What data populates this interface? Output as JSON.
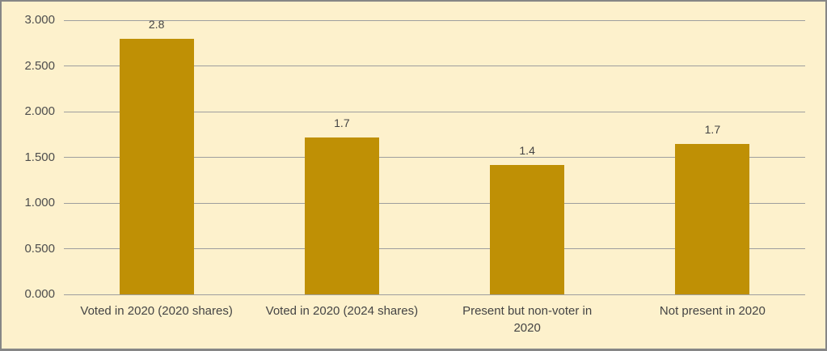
{
  "chart_data": {
    "type": "bar",
    "title": "",
    "xlabel": "",
    "ylabel": "",
    "categories": [
      "Voted in 2020 (2020 shares)",
      "Voted in 2020 (2024 shares)",
      "Present but non-voter in 2020",
      "Not present in 2020"
    ],
    "values": [
      2.8,
      1.72,
      1.42,
      1.65
    ],
    "value_labels": [
      "2.8",
      "1.7",
      "1.4",
      "1.7"
    ],
    "y_ticks": [
      {
        "label": "3.000",
        "value": 3.0
      },
      {
        "label": "2.500",
        "value": 2.5
      },
      {
        "label": "2.000",
        "value": 2.0
      },
      {
        "label": "1.500",
        "value": 1.5
      },
      {
        "label": "1.000",
        "value": 1.0
      },
      {
        "label": "0.500",
        "value": 0.5
      },
      {
        "label": "0.000",
        "value": 0.0
      }
    ],
    "ylim": [
      0,
      3
    ],
    "grid": true,
    "legend": "none"
  },
  "style": {
    "background_color": "#FDF1CC",
    "bar_color": "#BF9005",
    "gridline_color": "#9E9E9E",
    "text_color": "#444444",
    "axis_text_color": "#4d4d4d",
    "border_color": "#868686"
  }
}
